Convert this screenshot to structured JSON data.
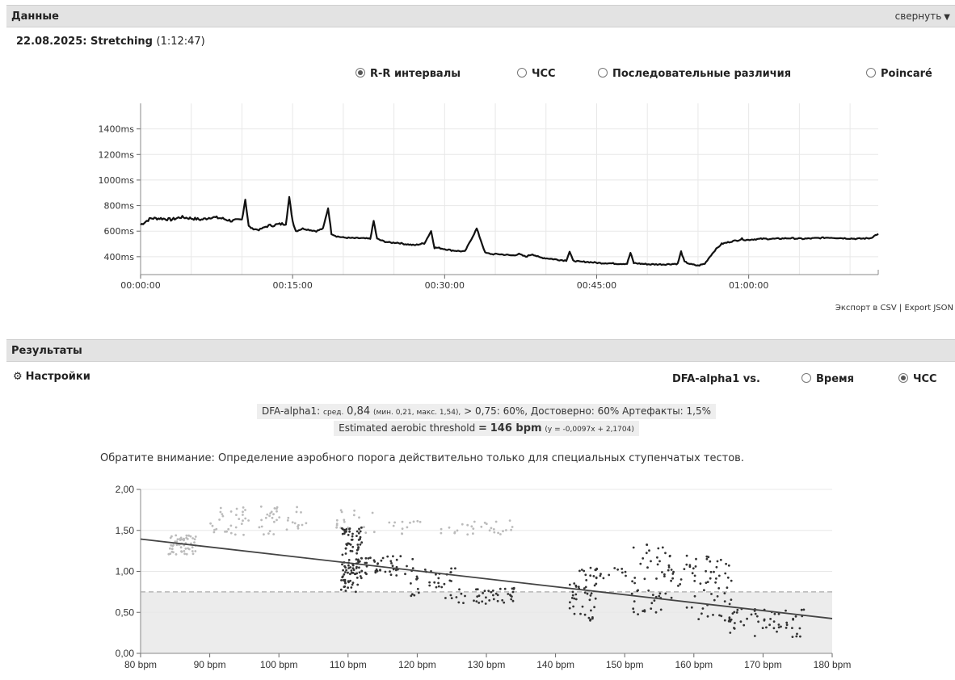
{
  "sections": {
    "data_title": "Данные",
    "collapse_label": "свернуть",
    "results_title": "Результаты"
  },
  "session": {
    "date_name": "22.08.2025: Stretching",
    "duration": "(1:12:47)"
  },
  "view_options": [
    {
      "label": "R-R интервалы",
      "selected": true
    },
    {
      "label": "ЧСС",
      "selected": false
    },
    {
      "label": "Последовательные различия",
      "selected": false
    },
    {
      "label": "Poincaré",
      "selected": false
    }
  ],
  "export": {
    "csv": "Экспорт в CSV",
    "sep": "|",
    "json": "Export JSON"
  },
  "settings": {
    "label": "Настройки",
    "dfa_vs": "DFA-alpha1 vs.",
    "options": [
      {
        "label": "Время",
        "selected": false
      },
      {
        "label": "ЧСС",
        "selected": true
      }
    ]
  },
  "stats": {
    "prefix": "DFA-alpha1:",
    "avg_label": "сред.",
    "avg_value": "0,84",
    "range": "(мин. 0,21, макс. 1,54),",
    "above": "> 0,75: 60%,",
    "reliable": "Достоверно: 60%",
    "artifacts": "Артефакты: 1,5%",
    "threshold_label": "Estimated aerobic threshold",
    "threshold_eq": "=",
    "threshold_value": "146 bpm",
    "formula": "(y = -0,0097x + 2,1704)"
  },
  "note": "Обратите внимание: Определение аэробного порога действительно только для специальных ступенчатых тестов.",
  "colors": {
    "line": "#111111",
    "points_dark": "#333333",
    "points_light": "#bbbbbb",
    "threshold_band": "#ececec",
    "grid": "#e8e8e8"
  },
  "chart_data": [
    {
      "type": "line",
      "name": "rr",
      "ylabel": "",
      "xlabel": "",
      "xlim_s": [
        0,
        4367
      ],
      "ylim": [
        260,
        1600
      ],
      "yticks": [
        400,
        600,
        800,
        1000,
        1200,
        1400
      ],
      "ytick_labels": [
        "400ms",
        "600ms",
        "800ms",
        "1000ms",
        "1200ms",
        "1400ms"
      ],
      "xticks_s": [
        0,
        900,
        1800,
        2700,
        3600
      ],
      "xtick_labels": [
        "00:00:00",
        "00:15:00",
        "00:30:00",
        "00:45:00",
        "01:00:00"
      ],
      "grid": true,
      "series_approx": {
        "x_s": [
          0,
          60,
          120,
          180,
          240,
          300,
          360,
          420,
          480,
          540,
          600,
          620,
          640,
          660,
          700,
          750,
          800,
          860,
          880,
          900,
          920,
          960,
          1000,
          1040,
          1080,
          1110,
          1130,
          1160,
          1200,
          1260,
          1300,
          1360,
          1380,
          1400,
          1440,
          1480,
          1520,
          1560,
          1620,
          1680,
          1720,
          1740,
          1760,
          1800,
          1840,
          1880,
          1920,
          1990,
          2040,
          2080,
          2120,
          2200,
          2240,
          2280,
          2320,
          2360,
          2420,
          2480,
          2520,
          2540,
          2560,
          2600,
          2640,
          2680,
          2720,
          2760,
          2820,
          2880,
          2900,
          2920,
          2960,
          3020,
          3100,
          3180,
          3200,
          3220,
          3260,
          3300,
          3340,
          3370,
          3400,
          3440,
          3500,
          3540,
          3560,
          3580,
          3620,
          3680,
          3760,
          3840,
          3920,
          4000,
          4080,
          4160,
          4240,
          4320,
          4367
        ],
        "y_ms": [
          650,
          700,
          700,
          690,
          710,
          700,
          690,
          710,
          700,
          680,
          690,
          850,
          640,
          620,
          610,
          640,
          650,
          660,
          860,
          680,
          600,
          620,
          610,
          600,
          620,
          780,
          580,
          560,
          550,
          545,
          545,
          540,
          680,
          540,
          520,
          510,
          510,
          500,
          490,
          505,
          600,
          470,
          470,
          460,
          450,
          445,
          440,
          620,
          430,
          420,
          420,
          410,
          420,
          400,
          420,
          395,
          385,
          375,
          370,
          440,
          370,
          360,
          360,
          355,
          350,
          350,
          345,
          345,
          430,
          350,
          345,
          340,
          340,
          345,
          440,
          360,
          340,
          330,
          345,
          400,
          450,
          500,
          520,
          530,
          540,
          530,
          535,
          540,
          540,
          545,
          540,
          545,
          550,
          545,
          540,
          545,
          580
        ]
      }
    },
    {
      "type": "scatter",
      "name": "dfa",
      "xlabel": "",
      "ylabel": "",
      "xlim": [
        80,
        180
      ],
      "ylim": [
        0,
        2
      ],
      "xticks": [
        80,
        90,
        100,
        110,
        120,
        130,
        140,
        150,
        160,
        170,
        180
      ],
      "xtick_labels": [
        "80 bpm",
        "90 bpm",
        "100 bpm",
        "110 bpm",
        "120 bpm",
        "130 bpm",
        "140 bpm",
        "150 bpm",
        "160 bpm",
        "170 bpm",
        "180 bpm"
      ],
      "yticks": [
        0,
        0.5,
        1,
        1.5,
        2
      ],
      "ytick_labels": [
        "0,00",
        "0,50",
        "1,00",
        "1,50",
        "2,00"
      ],
      "threshold_y": 0.75,
      "regression": {
        "slope": -0.0097,
        "intercept": 2.1704,
        "x_range": [
          80,
          180
        ]
      },
      "clusters": [
        {
          "x": [
            84,
            88
          ],
          "y": [
            1.2,
            1.45
          ],
          "n": 55,
          "shade": "light"
        },
        {
          "x": [
            90,
            96
          ],
          "y": [
            1.4,
            1.8
          ],
          "n": 30,
          "shade": "light"
        },
        {
          "x": [
            97,
            104
          ],
          "y": [
            1.45,
            1.8
          ],
          "n": 35,
          "shade": "light"
        },
        {
          "x": [
            108,
            114
          ],
          "y": [
            1.45,
            1.75
          ],
          "n": 20,
          "shade": "light"
        },
        {
          "x": [
            114,
            134
          ],
          "y": [
            1.45,
            1.62
          ],
          "n": 40,
          "shade": "light"
        },
        {
          "x": [
            109,
            112
          ],
          "y": [
            0.75,
            1.55
          ],
          "n": 110,
          "shade": "dark"
        },
        {
          "x": [
            112,
            120
          ],
          "y": [
            0.95,
            1.2
          ],
          "n": 40,
          "shade": "dark"
        },
        {
          "x": [
            119,
            126
          ],
          "y": [
            0.65,
            1.05
          ],
          "n": 35,
          "shade": "dark"
        },
        {
          "x": [
            126,
            134
          ],
          "y": [
            0.6,
            0.8
          ],
          "n": 40,
          "shade": "dark"
        },
        {
          "x": [
            142,
            146
          ],
          "y": [
            0.4,
            1.05
          ],
          "n": 45,
          "shade": "dark"
        },
        {
          "x": [
            145,
            151
          ],
          "y": [
            0.9,
            1.05
          ],
          "n": 15,
          "shade": "dark"
        },
        {
          "x": [
            151,
            156
          ],
          "y": [
            0.45,
            1.35
          ],
          "n": 45,
          "shade": "dark"
        },
        {
          "x": [
            156,
            166
          ],
          "y": [
            0.4,
            1.2
          ],
          "n": 70,
          "shade": "dark"
        },
        {
          "x": [
            165,
            176
          ],
          "y": [
            0.2,
            0.55
          ],
          "n": 55,
          "shade": "dark"
        }
      ]
    }
  ]
}
